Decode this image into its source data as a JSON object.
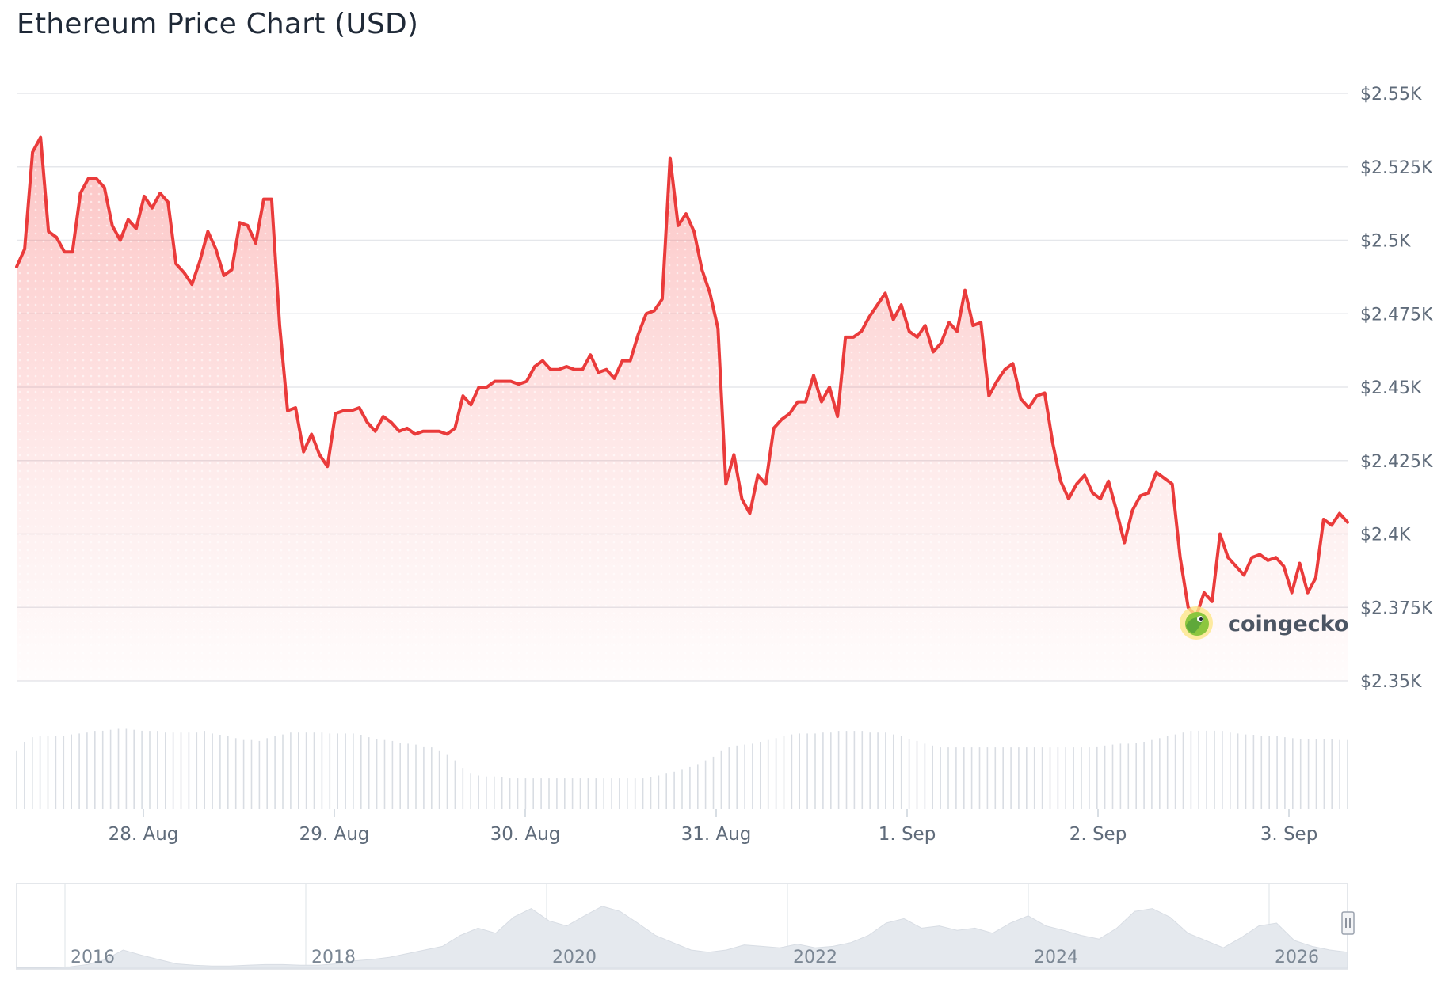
{
  "title": "Ethereum Price Chart (USD)",
  "watermark": {
    "text": "coingecko",
    "icon": "gecko-logo-icon"
  },
  "colors": {
    "line": "#ea3b3b",
    "fill": "#f87171",
    "grid": "#e5e7eb",
    "volume": "#d9dde3",
    "navigator": "#e3e8ee"
  },
  "chart_data": {
    "type": "area",
    "title": "Ethereum Price Chart (USD)",
    "xlabel": "",
    "ylabel": "",
    "xlim": [
      "27 Aug 09:20",
      "3 Sep 08:40"
    ],
    "ylim": [
      2350,
      2550
    ],
    "y_ticks": [
      2550,
      2525,
      2500,
      2475,
      2450,
      2425,
      2400,
      2375,
      2350
    ],
    "y_tick_labels": [
      "$2.55K",
      "$2.525K",
      "$2.5K",
      "$2.475K",
      "$2.45K",
      "$2.425K",
      "$2.4K",
      "$2.375K",
      "$2.35K"
    ],
    "x_ticks": [
      "28. Aug",
      "29. Aug",
      "30. Aug",
      "31. Aug",
      "1. Sep",
      "2. Sep",
      "3. Sep"
    ],
    "grid": true,
    "legend": "none",
    "series": [
      {
        "values": [
          2491,
          2497,
          2530,
          2535,
          2503,
          2501,
          2496,
          2496,
          2516,
          2521,
          2521,
          2518,
          2505,
          2500,
          2507,
          2504,
          2515,
          2511,
          2516,
          2513,
          2492,
          2489,
          2485,
          2493,
          2503,
          2497,
          2488,
          2490,
          2506,
          2505,
          2499,
          2514,
          2514,
          2471,
          2442,
          2443,
          2428,
          2434,
          2427,
          2423,
          2441,
          2442,
          2442,
          2443,
          2438,
          2435,
          2440,
          2438,
          2435,
          2436,
          2434,
          2435,
          2435,
          2435,
          2434,
          2436,
          2447,
          2444,
          2450,
          2450,
          2452,
          2452,
          2452,
          2451,
          2452,
          2457,
          2459,
          2456,
          2456,
          2457,
          2456,
          2456,
          2461,
          2455,
          2456,
          2453,
          2459,
          2459,
          2468,
          2475,
          2476,
          2480,
          2528,
          2505,
          2509,
          2503,
          2490,
          2482,
          2470,
          2417,
          2427,
          2412,
          2407,
          2420,
          2417,
          2436,
          2439,
          2441,
          2445,
          2445,
          2454,
          2445,
          2450,
          2440,
          2467,
          2467,
          2469,
          2474,
          2478,
          2482,
          2473,
          2478,
          2469,
          2467,
          2471,
          2462,
          2465,
          2472,
          2469,
          2483,
          2471,
          2472,
          2447,
          2452,
          2456,
          2458,
          2446,
          2443,
          2447,
          2448,
          2431,
          2418,
          2412,
          2417,
          2420,
          2414,
          2412,
          2418,
          2408,
          2397,
          2408,
          2413,
          2414,
          2421,
          2419,
          2417,
          2392,
          2375,
          2372,
          2380,
          2377,
          2400,
          2392,
          2389,
          2386,
          2392,
          2393,
          2391,
          2392,
          2389,
          2380,
          2390,
          2380,
          2385,
          2405,
          2403,
          2407,
          2404
        ]
      }
    ],
    "volume_series": {
      "values": [
        62,
        72,
        77,
        78,
        78,
        78,
        78,
        80,
        81,
        82,
        83,
        84,
        85,
        86,
        86,
        85,
        84,
        83,
        83,
        82,
        82,
        82,
        82,
        82,
        83,
        81,
        79,
        78,
        76,
        74,
        74,
        73,
        76,
        78,
        80,
        82,
        82,
        82,
        82,
        82,
        81,
        81,
        81,
        81,
        79,
        77,
        75,
        74,
        73,
        71,
        70,
        69,
        67,
        66,
        62,
        58,
        52,
        44,
        38,
        36,
        35,
        35,
        34,
        33,
        33,
        33,
        33,
        33,
        33,
        33,
        33,
        33,
        33,
        33,
        33,
        33,
        33,
        33,
        33,
        33,
        33,
        34,
        36,
        38,
        40,
        42,
        45,
        48,
        52,
        56,
        62,
        66,
        68,
        69,
        70,
        72,
        74,
        76,
        78,
        80,
        81,
        81,
        81,
        82,
        82,
        83,
        83,
        83,
        83,
        82,
        82,
        82,
        80,
        78,
        75,
        73,
        70,
        68,
        66,
        66,
        66,
        66,
        66,
        66,
        66,
        66,
        66,
        66,
        66,
        66,
        66,
        66,
        66,
        66,
        66,
        66,
        66,
        66,
        67,
        68,
        69,
        70,
        70,
        71,
        72,
        74,
        76,
        78,
        80,
        82,
        83,
        84,
        84,
        84,
        83,
        82,
        81,
        80,
        79,
        78,
        78,
        78,
        77,
        76,
        75,
        75,
        75,
        75,
        75,
        74,
        74
      ]
    },
    "navigator": {
      "x_ticks": [
        "2016",
        "2018",
        "2020",
        "2022",
        "2024",
        "2026"
      ],
      "values": [
        0.01,
        0.01,
        0.01,
        0.02,
        0.05,
        0.12,
        0.25,
        0.18,
        0.12,
        0.06,
        0.04,
        0.03,
        0.03,
        0.04,
        0.05,
        0.05,
        0.04,
        0.04,
        0.06,
        0.1,
        0.12,
        0.15,
        0.2,
        0.25,
        0.3,
        0.45,
        0.55,
        0.48,
        0.7,
        0.82,
        0.65,
        0.58,
        0.72,
        0.85,
        0.78,
        0.62,
        0.45,
        0.35,
        0.25,
        0.22,
        0.25,
        0.32,
        0.3,
        0.28,
        0.33,
        0.28,
        0.3,
        0.35,
        0.45,
        0.62,
        0.68,
        0.55,
        0.58,
        0.52,
        0.55,
        0.48,
        0.62,
        0.72,
        0.58,
        0.52,
        0.45,
        0.4,
        0.55,
        0.78,
        0.82,
        0.7,
        0.48,
        0.38,
        0.28,
        0.42,
        0.58,
        0.62,
        0.38,
        0.3,
        0.25,
        0.22
      ]
    }
  }
}
